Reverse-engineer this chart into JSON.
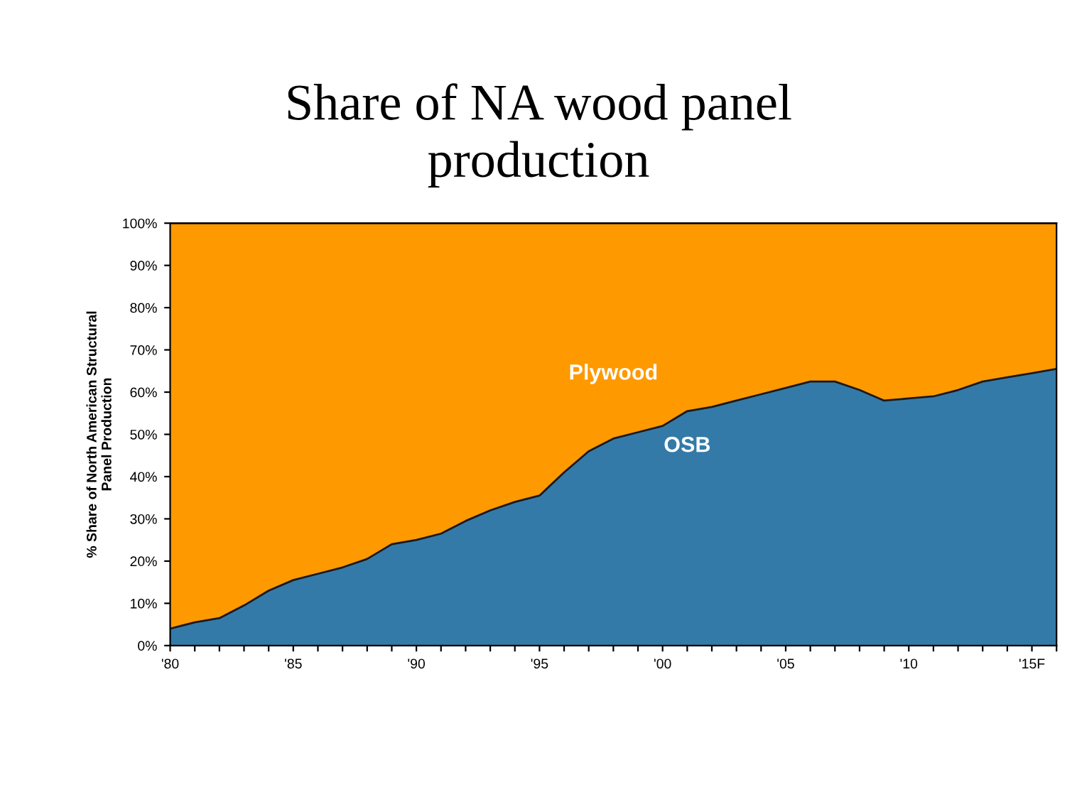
{
  "chart_data": {
    "type": "area",
    "stacked": true,
    "title": "Share of NA wood panel\nproduction",
    "ylabel": "% Share of North American Structural\nPanel Production",
    "categories": [
      "'80",
      null,
      null,
      null,
      null,
      "'85",
      null,
      null,
      null,
      null,
      "'90",
      null,
      null,
      null,
      null,
      "'95",
      null,
      null,
      null,
      null,
      "'00",
      null,
      null,
      null,
      null,
      "'05",
      null,
      null,
      null,
      null,
      "'10",
      null,
      null,
      null,
      null,
      "'15F",
      null
    ],
    "series": [
      {
        "name": "OSB",
        "color": "#337aa8",
        "values": [
          4,
          5.5,
          6.5,
          9.5,
          13,
          15.5,
          17,
          18.5,
          20.5,
          24,
          25,
          26.5,
          29.5,
          32,
          34,
          35.5,
          41,
          46,
          49,
          50.5,
          52,
          55.5,
          56.5,
          58,
          59.5,
          61,
          62.5,
          62.5,
          60.5,
          58,
          58.5,
          59,
          60.5,
          62.5,
          63.5,
          64.5,
          65.5
        ]
      },
      {
        "name": "Plywood",
        "color": "#ff9900",
        "values": [
          96,
          94.5,
          93.5,
          90.5,
          87,
          84.5,
          83,
          81.5,
          79.5,
          76,
          75,
          73.5,
          70.5,
          68,
          66,
          64.5,
          59,
          54,
          51,
          49.5,
          48,
          44.5,
          43.5,
          42,
          40.5,
          39,
          37.5,
          37.5,
          39.5,
          42,
          41.5,
          41,
          39.5,
          37.5,
          36.5,
          35.5,
          34.5
        ]
      }
    ],
    "ylim": [
      0,
      100
    ],
    "yticks": [
      {
        "value": 0,
        "label": "0%"
      },
      {
        "value": 10,
        "label": "10%"
      },
      {
        "value": 20,
        "label": "20%"
      },
      {
        "value": 30,
        "label": "30%"
      },
      {
        "value": 40,
        "label": "40%"
      },
      {
        "value": 50,
        "label": "50%"
      },
      {
        "value": 60,
        "label": "60%"
      },
      {
        "value": 70,
        "label": "70%"
      },
      {
        "value": 80,
        "label": "80%"
      },
      {
        "value": 90,
        "label": "90%"
      },
      {
        "value": 100,
        "label": "100%"
      }
    ],
    "grid": false,
    "legend": false
  }
}
